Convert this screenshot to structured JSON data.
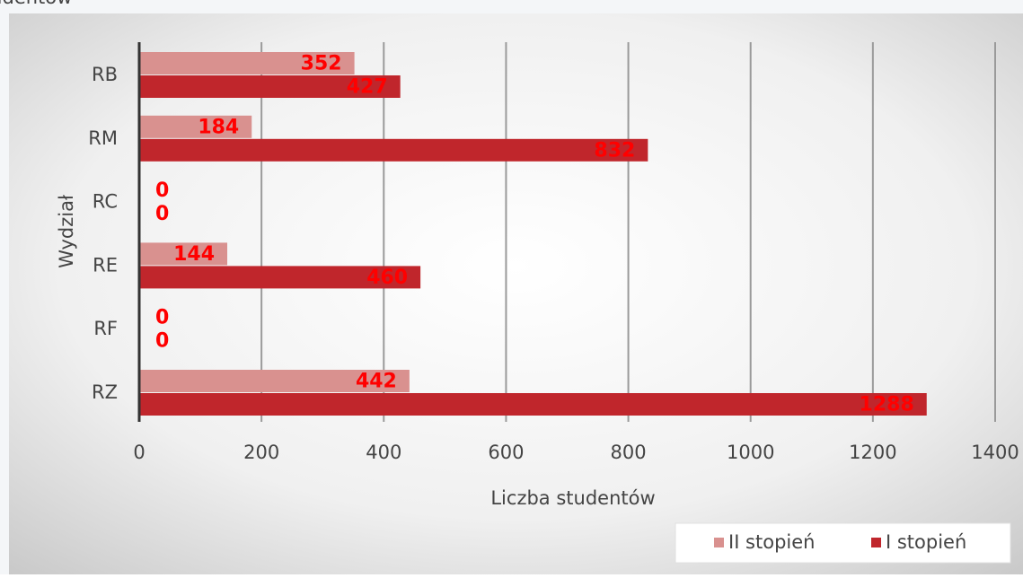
{
  "chart_data": {
    "type": "barh",
    "title": "studentów",
    "categories": [
      "RB",
      "RM",
      "RC",
      "RE",
      "RF",
      "RZ"
    ],
    "series": [
      {
        "name": "II stopień",
        "color": "#d9918f",
        "values": [
          352,
          184,
          0,
          144,
          0,
          442
        ]
      },
      {
        "name": "I stopień",
        "color": "#c0262c",
        "values": [
          427,
          832,
          0,
          460,
          0,
          1288
        ]
      }
    ],
    "xlabel": "Liczba studentów",
    "ylabel": "Wydział",
    "xlim": [
      0,
      1400
    ],
    "xticks": [
      0,
      200,
      400,
      600,
      800,
      1000,
      1200,
      1400
    ],
    "grid": true,
    "legend": "bottom-right"
  }
}
